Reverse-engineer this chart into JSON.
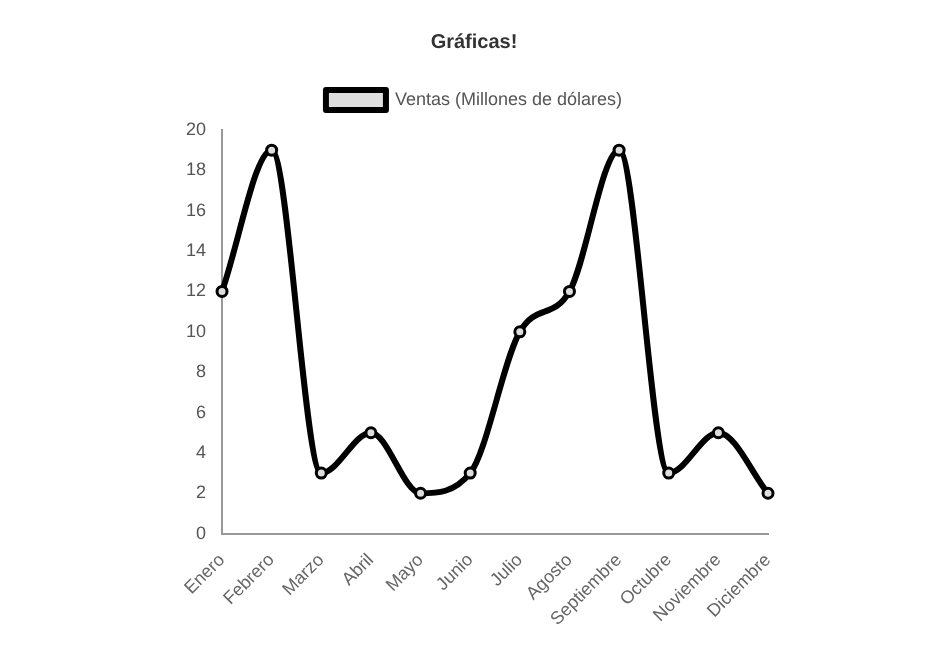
{
  "chart_data": {
    "type": "line",
    "title": "Gráficas!",
    "categories": [
      "Enero",
      "Febrero",
      "Marzo",
      "Abril",
      "Mayo",
      "Junio",
      "Julio",
      "Agosto",
      "Septiembre",
      "Octubre",
      "Noviembre",
      "Diciembre"
    ],
    "series": [
      {
        "name": "Ventas (Millones de dólares)",
        "color": "#000000",
        "values": [
          12,
          19,
          3,
          5,
          2,
          3,
          10,
          12,
          19,
          3,
          5,
          2
        ]
      }
    ],
    "ylim": [
      0,
      20
    ],
    "yticks": [
      0,
      2,
      4,
      6,
      8,
      10,
      12,
      14,
      16,
      18,
      20
    ],
    "grid": false,
    "legend": "top",
    "marker": "circle",
    "line_style": "solid"
  }
}
